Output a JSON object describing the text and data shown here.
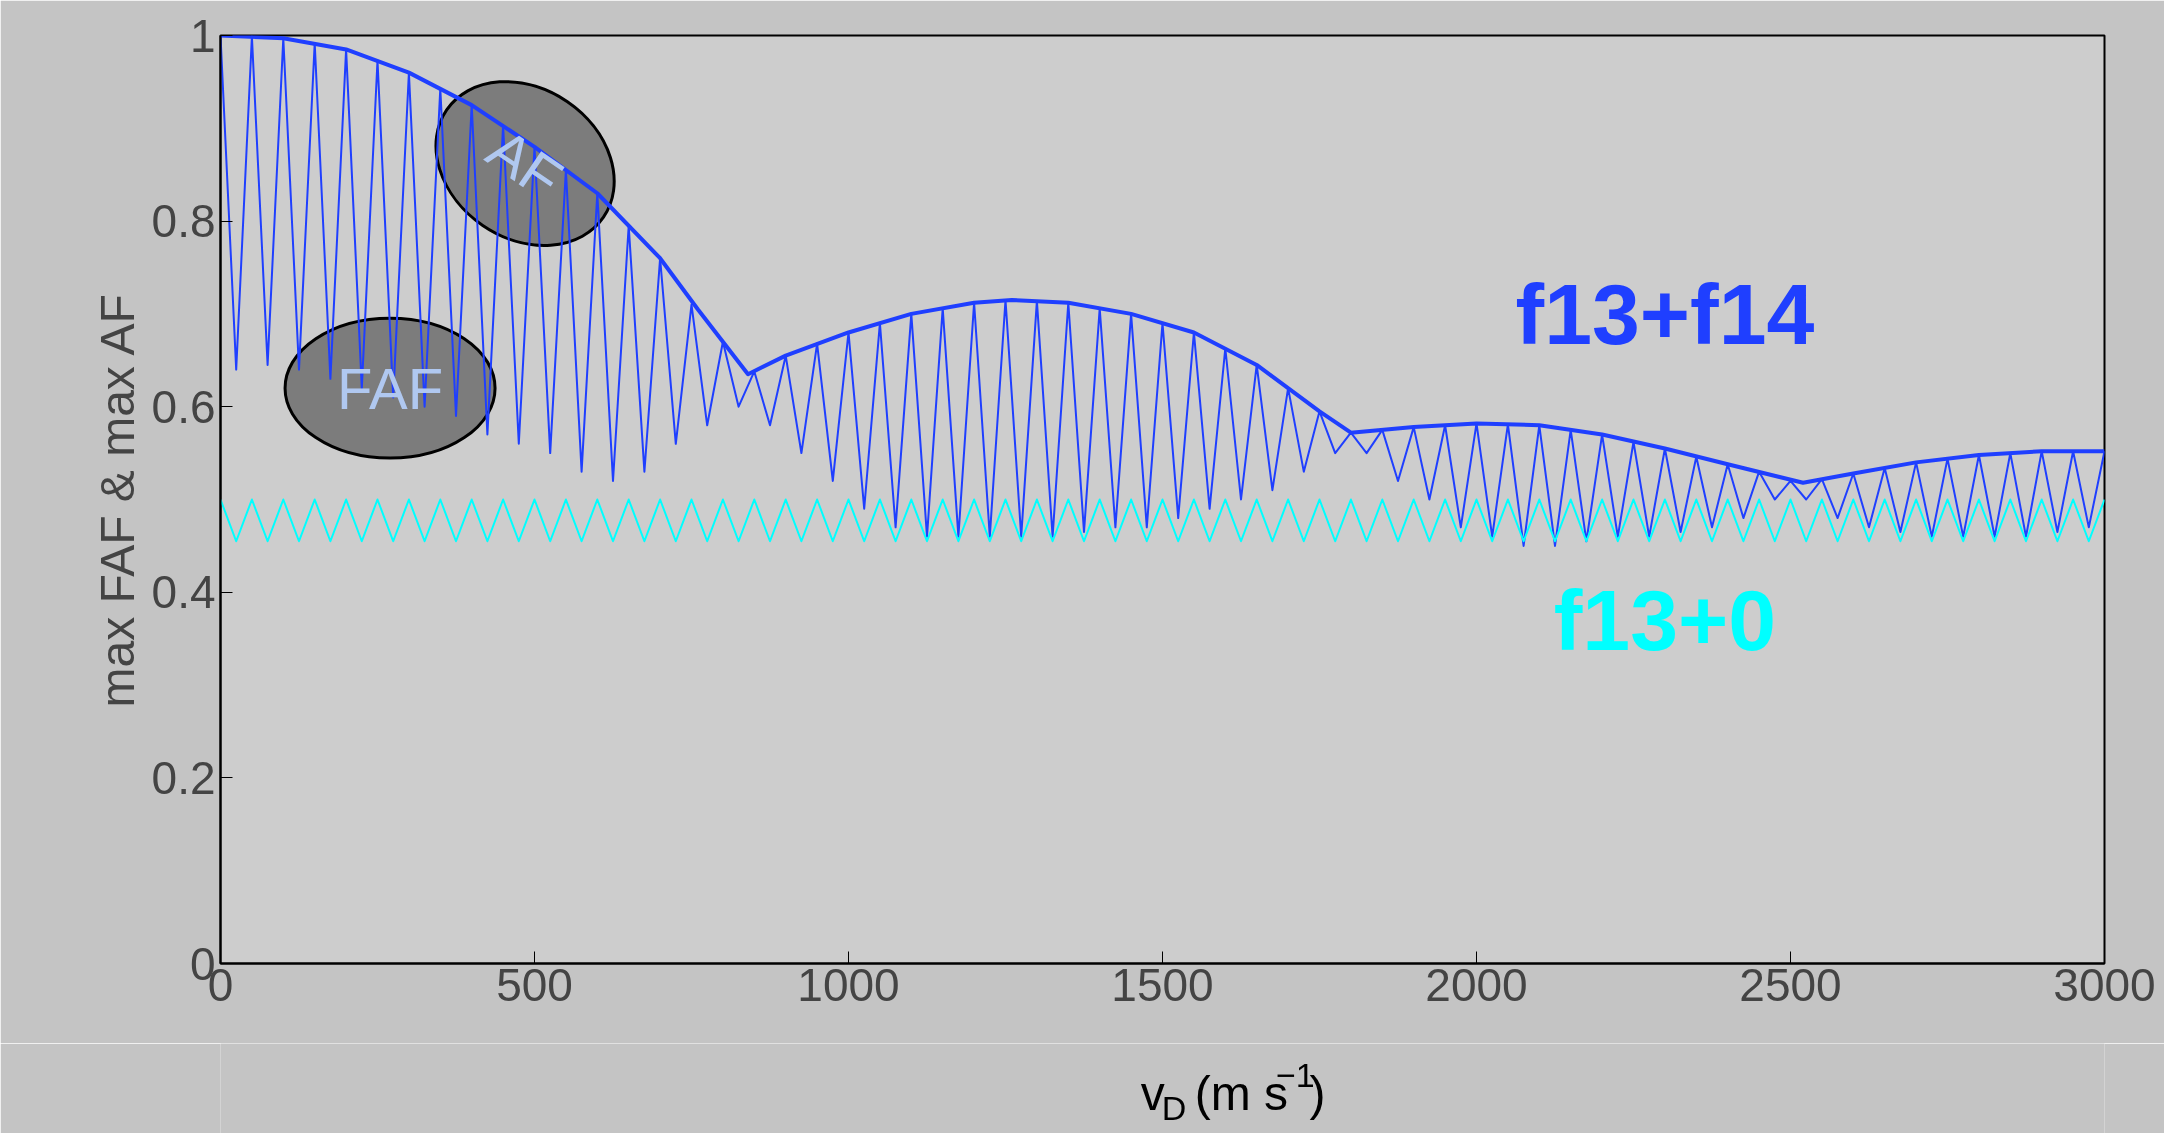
{
  "chart_data": {
    "type": "line",
    "xlabel": "v$_{D}$ (m s$^{−1}$)",
    "ylabel": "max FAF & max AF",
    "xlim": [
      0,
      3000
    ],
    "ylim": [
      0,
      1
    ],
    "xticks": [
      0,
      500,
      1000,
      1500,
      2000,
      2500,
      3000
    ],
    "yticks": [
      0,
      0.2,
      0.4,
      0.6,
      0.8,
      1
    ],
    "grid": false,
    "marker": "none",
    "line_style": "solid",
    "annotations": [
      "AF",
      "FAF"
    ],
    "series": [
      {
        "name": "f13+f14",
        "color": "#1f3fff",
        "x": [
          0,
          100,
          200,
          300,
          400,
          500,
          600,
          700,
          760,
          840,
          900,
          1000,
          1100,
          1200,
          1260,
          1350,
          1450,
          1550,
          1650,
          1750,
          1800,
          1900,
          2000,
          2100,
          2200,
          2300,
          2400,
          2520,
          2600,
          2700,
          2800,
          2900,
          3000
        ],
        "values": [
          1,
          0.997,
          0.985,
          0.96,
          0.925,
          0.88,
          0.83,
          0.76,
          0.705,
          0.635,
          0.655,
          0.68,
          0.7,
          0.712,
          0.715,
          0.712,
          0.7,
          0.68,
          0.645,
          0.595,
          0.572,
          0.578,
          0.582,
          0.58,
          0.57,
          0.555,
          0.538,
          0.518,
          0.528,
          0.54,
          0.548,
          0.552,
          0.552
        ]
      },
      {
        "color": "#1f3fff",
        "x": [
          0,
          25,
          50,
          75,
          100,
          125,
          150,
          175,
          200,
          225,
          250,
          275,
          300,
          325,
          350,
          375,
          400,
          425,
          450,
          475,
          500,
          525,
          550,
          575,
          600,
          625,
          650,
          675,
          700,
          725,
          750,
          775,
          800,
          825,
          850,
          875,
          900,
          925,
          950,
          975,
          1000,
          1025,
          1050,
          1075,
          1100,
          1125,
          1150,
          1175,
          1200,
          1225,
          1250,
          1275,
          1300,
          1325,
          1350,
          1375,
          1400,
          1425,
          1450,
          1475,
          1500,
          1525,
          1550,
          1575,
          1600,
          1625,
          1650,
          1675,
          1700,
          1725,
          1750,
          1775,
          1800,
          1825,
          1850,
          1875,
          1900,
          1925,
          1950,
          1975,
          2000,
          2025,
          2050,
          2075,
          2100,
          2125,
          2150,
          2175,
          2200,
          2225,
          2250,
          2275,
          2300,
          2325,
          2350,
          2375,
          2400,
          2425,
          2450,
          2475,
          2500,
          2525,
          2550,
          2575,
          2600,
          2625,
          2650,
          2675,
          2700,
          2725,
          2750,
          2775,
          2800,
          2825,
          2850,
          2875,
          2900,
          2925,
          2950,
          2975,
          3000
        ],
        "values": [
          1,
          0.64,
          0.999,
          0.645,
          0.997,
          0.64,
          0.992,
          0.63,
          0.985,
          0.62,
          0.973,
          0.61,
          0.96,
          0.6,
          0.943,
          0.59,
          0.925,
          0.57,
          0.903,
          0.56,
          0.88,
          0.55,
          0.855,
          0.53,
          0.83,
          0.52,
          0.795,
          0.53,
          0.76,
          0.56,
          0.71,
          0.58,
          0.67,
          0.6,
          0.638,
          0.58,
          0.655,
          0.55,
          0.668,
          0.52,
          0.68,
          0.49,
          0.69,
          0.47,
          0.7,
          0.46,
          0.706,
          0.46,
          0.712,
          0.46,
          0.715,
          0.46,
          0.714,
          0.46,
          0.712,
          0.465,
          0.706,
          0.47,
          0.7,
          0.47,
          0.69,
          0.48,
          0.68,
          0.49,
          0.663,
          0.5,
          0.645,
          0.51,
          0.62,
          0.53,
          0.595,
          0.55,
          0.572,
          0.55,
          0.575,
          0.52,
          0.578,
          0.5,
          0.58,
          0.47,
          0.582,
          0.46,
          0.581,
          0.45,
          0.58,
          0.45,
          0.575,
          0.455,
          0.57,
          0.46,
          0.562,
          0.46,
          0.555,
          0.465,
          0.546,
          0.47,
          0.538,
          0.48,
          0.53,
          0.5,
          0.52,
          0.5,
          0.522,
          0.48,
          0.528,
          0.47,
          0.534,
          0.465,
          0.54,
          0.46,
          0.544,
          0.46,
          0.548,
          0.46,
          0.55,
          0.46,
          0.552,
          0.465,
          0.552,
          0.47,
          0.552
        ]
      },
      {
        "name": "f13+0",
        "color": "#00ffff",
        "x": [
          0,
          25,
          50,
          75,
          100,
          125,
          150,
          175,
          200,
          225,
          250,
          275,
          300,
          325,
          350,
          375,
          400,
          425,
          450,
          475,
          500,
          525,
          550,
          575,
          600,
          625,
          650,
          675,
          700,
          725,
          750,
          775,
          800,
          825,
          850,
          875,
          900,
          925,
          950,
          975,
          1000,
          1025,
          1050,
          1075,
          1100,
          1125,
          1150,
          1175,
          1200,
          1225,
          1250,
          1275,
          1300,
          1325,
          1350,
          1375,
          1400,
          1425,
          1450,
          1475,
          1500,
          1525,
          1550,
          1575,
          1600,
          1625,
          1650,
          1675,
          1700,
          1725,
          1750,
          1775,
          1800,
          1825,
          1850,
          1875,
          1900,
          1925,
          1950,
          1975,
          2000,
          2025,
          2050,
          2075,
          2100,
          2125,
          2150,
          2175,
          2200,
          2225,
          2250,
          2275,
          2300,
          2325,
          2350,
          2375,
          2400,
          2425,
          2450,
          2475,
          2500,
          2525,
          2550,
          2575,
          2600,
          2625,
          2650,
          2675,
          2700,
          2725,
          2750,
          2775,
          2800,
          2825,
          2850,
          2875,
          2900,
          2925,
          2950,
          2975,
          3000
        ],
        "values": [
          0.5,
          0.455,
          0.5,
          0.455,
          0.5,
          0.455,
          0.5,
          0.455,
          0.5,
          0.455,
          0.5,
          0.455,
          0.5,
          0.455,
          0.5,
          0.455,
          0.5,
          0.455,
          0.5,
          0.455,
          0.5,
          0.455,
          0.5,
          0.455,
          0.5,
          0.455,
          0.5,
          0.455,
          0.5,
          0.455,
          0.5,
          0.455,
          0.5,
          0.455,
          0.5,
          0.455,
          0.5,
          0.455,
          0.5,
          0.455,
          0.5,
          0.455,
          0.5,
          0.455,
          0.5,
          0.455,
          0.5,
          0.455,
          0.5,
          0.455,
          0.5,
          0.455,
          0.5,
          0.455,
          0.5,
          0.455,
          0.5,
          0.455,
          0.5,
          0.455,
          0.5,
          0.455,
          0.5,
          0.455,
          0.5,
          0.455,
          0.5,
          0.455,
          0.5,
          0.455,
          0.5,
          0.455,
          0.5,
          0.455,
          0.5,
          0.455,
          0.5,
          0.455,
          0.5,
          0.455,
          0.5,
          0.455,
          0.5,
          0.455,
          0.5,
          0.455,
          0.5,
          0.455,
          0.5,
          0.455,
          0.5,
          0.455,
          0.5,
          0.455,
          0.5,
          0.455,
          0.5,
          0.455,
          0.5,
          0.455,
          0.5,
          0.455,
          0.5,
          0.455,
          0.5,
          0.455,
          0.5,
          0.455,
          0.5,
          0.455,
          0.5,
          0.455,
          0.5,
          0.455,
          0.5,
          0.455,
          0.5,
          0.455,
          0.5,
          0.455,
          0.5
        ]
      }
    ]
  }
}
